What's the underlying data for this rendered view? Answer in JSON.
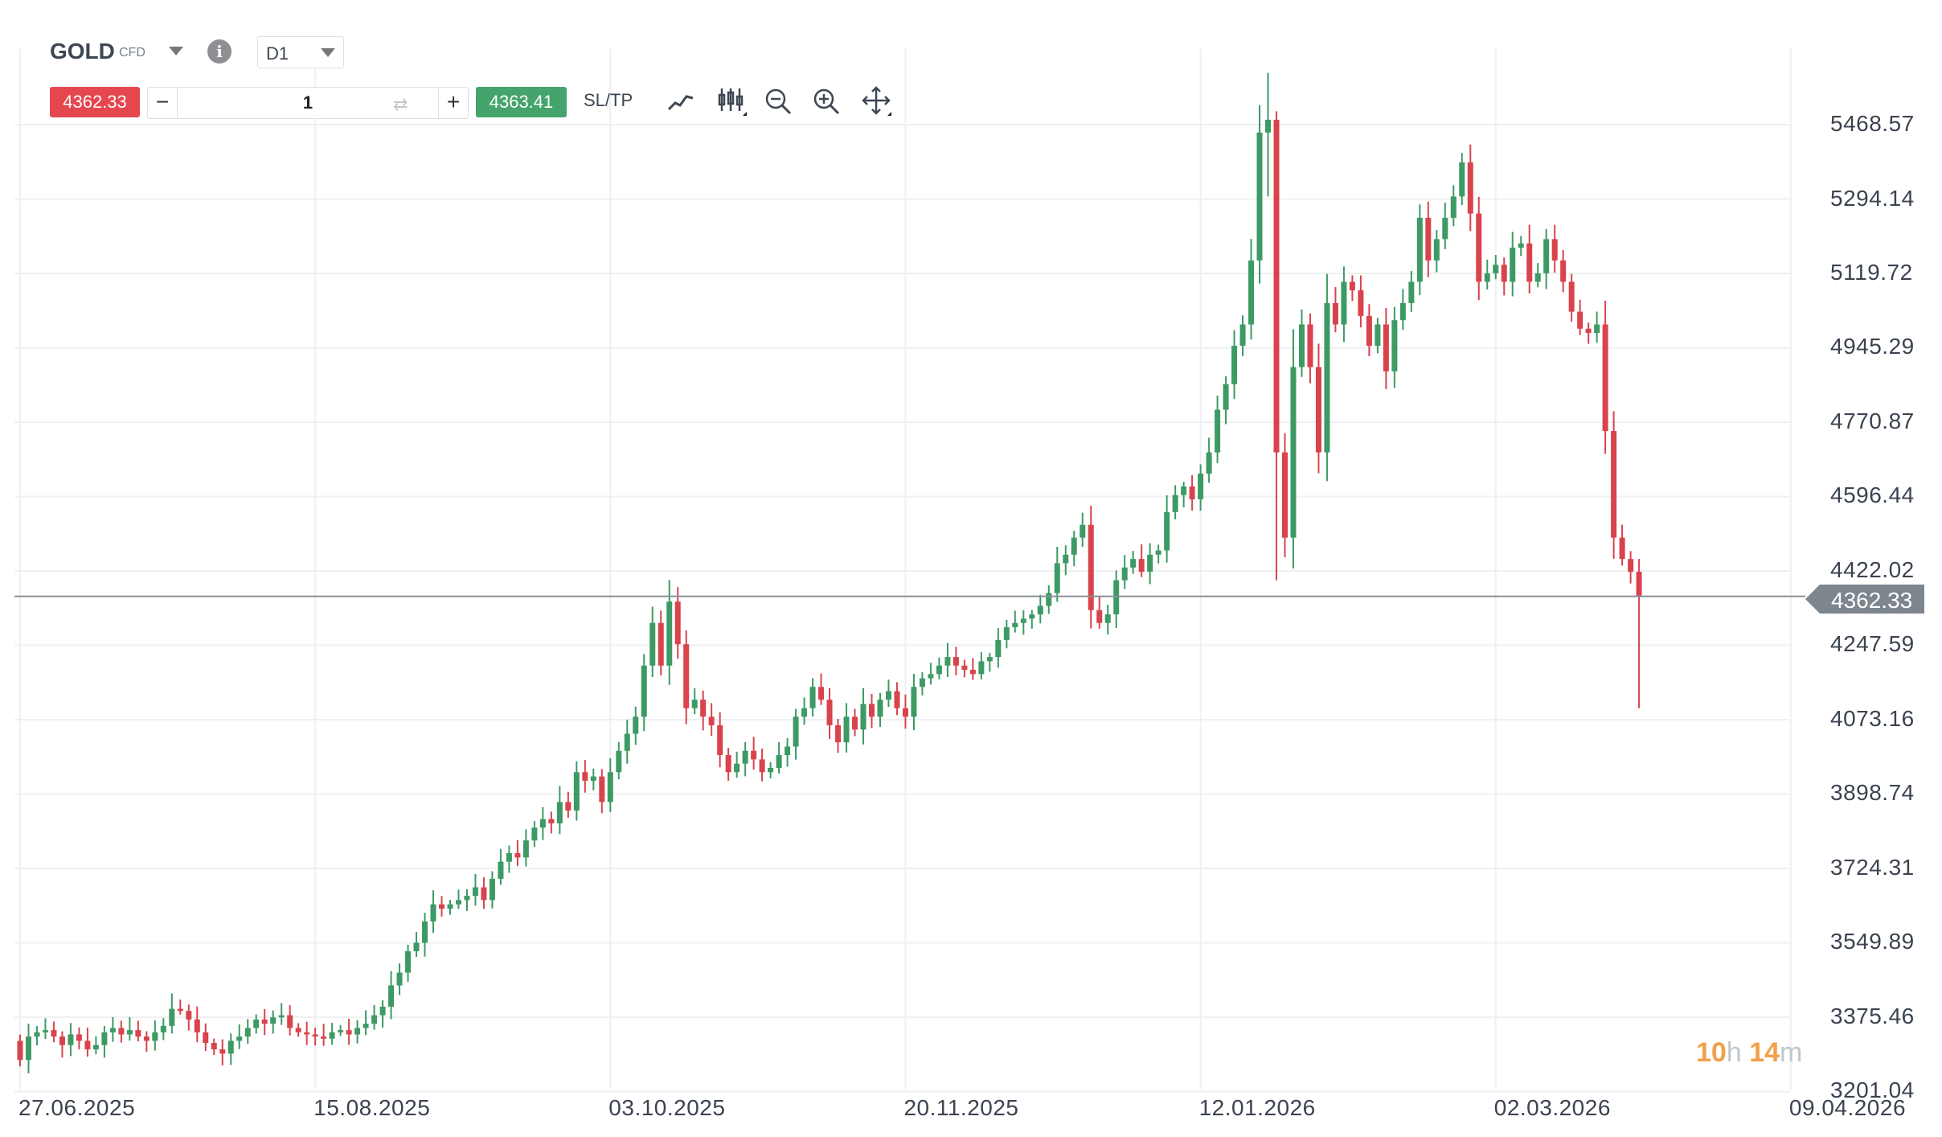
{
  "header": {
    "symbol": "GOLD",
    "instrument_type": "CFD",
    "info_icon": "info-icon",
    "timeframe": "D1"
  },
  "trade_bar": {
    "sell_price": "4362.33",
    "quantity": "1",
    "minus_label": "−",
    "plus_label": "+",
    "buy_price": "4363.41",
    "sltp_label": "SL/TP",
    "tools": [
      "line-chart-icon",
      "candlestick-icon",
      "zoom-out-icon",
      "zoom-in-icon",
      "move-icon"
    ]
  },
  "countdown": {
    "hours": "10",
    "h": "h",
    "minutes": "14",
    "m": "m"
  },
  "colors": {
    "up": "#3d9a64",
    "down": "#d9434c",
    "sell": "#e5474f",
    "buy": "#45a46c",
    "grid": "#eef0f2",
    "price_tag": "#7d858d",
    "countdown": "#f0a04b"
  },
  "chart_data": {
    "type": "candlestick",
    "title": "GOLD CFD D1",
    "current_price": "4362.33",
    "price_ticks": [
      "5468.57",
      "5294.14",
      "5119.72",
      "4945.29",
      "4770.87",
      "4596.44",
      "4422.02",
      "4247.59",
      "4073.16",
      "3898.74",
      "3724.31",
      "3549.89",
      "3375.46",
      "3201.04"
    ],
    "date_ticks": [
      "27.06.2025",
      "15.08.2025",
      "03.10.2025",
      "20.11.2025",
      "12.01.2026",
      "02.03.2026",
      "09.04.2026"
    ],
    "candles_per_date_tick": 35,
    "first_open": 3320,
    "closes": [
      3275,
      3330,
      3340,
      3345,
      3330,
      3310,
      3335,
      3320,
      3300,
      3310,
      3340,
      3350,
      3335,
      3345,
      3330,
      3320,
      3340,
      3355,
      3395,
      3390,
      3370,
      3340,
      3315,
      3300,
      3290,
      3320,
      3330,
      3350,
      3370,
      3360,
      3375,
      3380,
      3350,
      3340,
      3335,
      3330,
      3325,
      3340,
      3345,
      3335,
      3350,
      3360,
      3380,
      3400,
      3450,
      3480,
      3530,
      3550,
      3600,
      3640,
      3630,
      3640,
      3650,
      3660,
      3680,
      3650,
      3700,
      3740,
      3760,
      3750,
      3790,
      3820,
      3840,
      3830,
      3880,
      3860,
      3950,
      3930,
      3940,
      3880,
      3950,
      4000,
      4040,
      4080,
      4200,
      4300,
      4200,
      4350,
      4250,
      4100,
      4120,
      4080,
      4060,
      3990,
      3950,
      3970,
      4000,
      3980,
      3950,
      3960,
      3990,
      4010,
      4080,
      4100,
      4150,
      4120,
      4060,
      4020,
      4080,
      4050,
      4110,
      4080,
      4120,
      4140,
      4100,
      4080,
      4150,
      4170,
      4180,
      4200,
      4220,
      4200,
      4190,
      4180,
      4210,
      4220,
      4260,
      4290,
      4300,
      4310,
      4320,
      4340,
      4370,
      4440,
      4460,
      4500,
      4530,
      4330,
      4300,
      4320,
      4400,
      4430,
      4450,
      4420,
      4460,
      4470,
      4560,
      4600,
      4620,
      4590,
      4650,
      4700,
      4800,
      4860,
      4950,
      5000,
      5150,
      5450,
      5480,
      4700,
      4500,
      4900,
      5000,
      4900,
      4700,
      5050,
      5000,
      5100,
      5080,
      5020,
      4950,
      5000,
      4890,
      5010,
      5050,
      5100,
      5250,
      5150,
      5200,
      5250,
      5300,
      5380,
      5260,
      5100,
      5120,
      5140,
      5100,
      5180,
      5190,
      5100,
      5120,
      5200,
      5150,
      5100,
      5030,
      4990,
      4980,
      5000,
      4750,
      4500,
      4450,
      4420,
      4362.33
    ],
    "wick_overrides": [
      {
        "i": 148,
        "high": 5590,
        "low": 5300
      },
      {
        "i": 149,
        "high": 5500,
        "low": 4400
      },
      {
        "i": 192,
        "high": 4450,
        "low": 4100
      }
    ],
    "grid": true
  }
}
